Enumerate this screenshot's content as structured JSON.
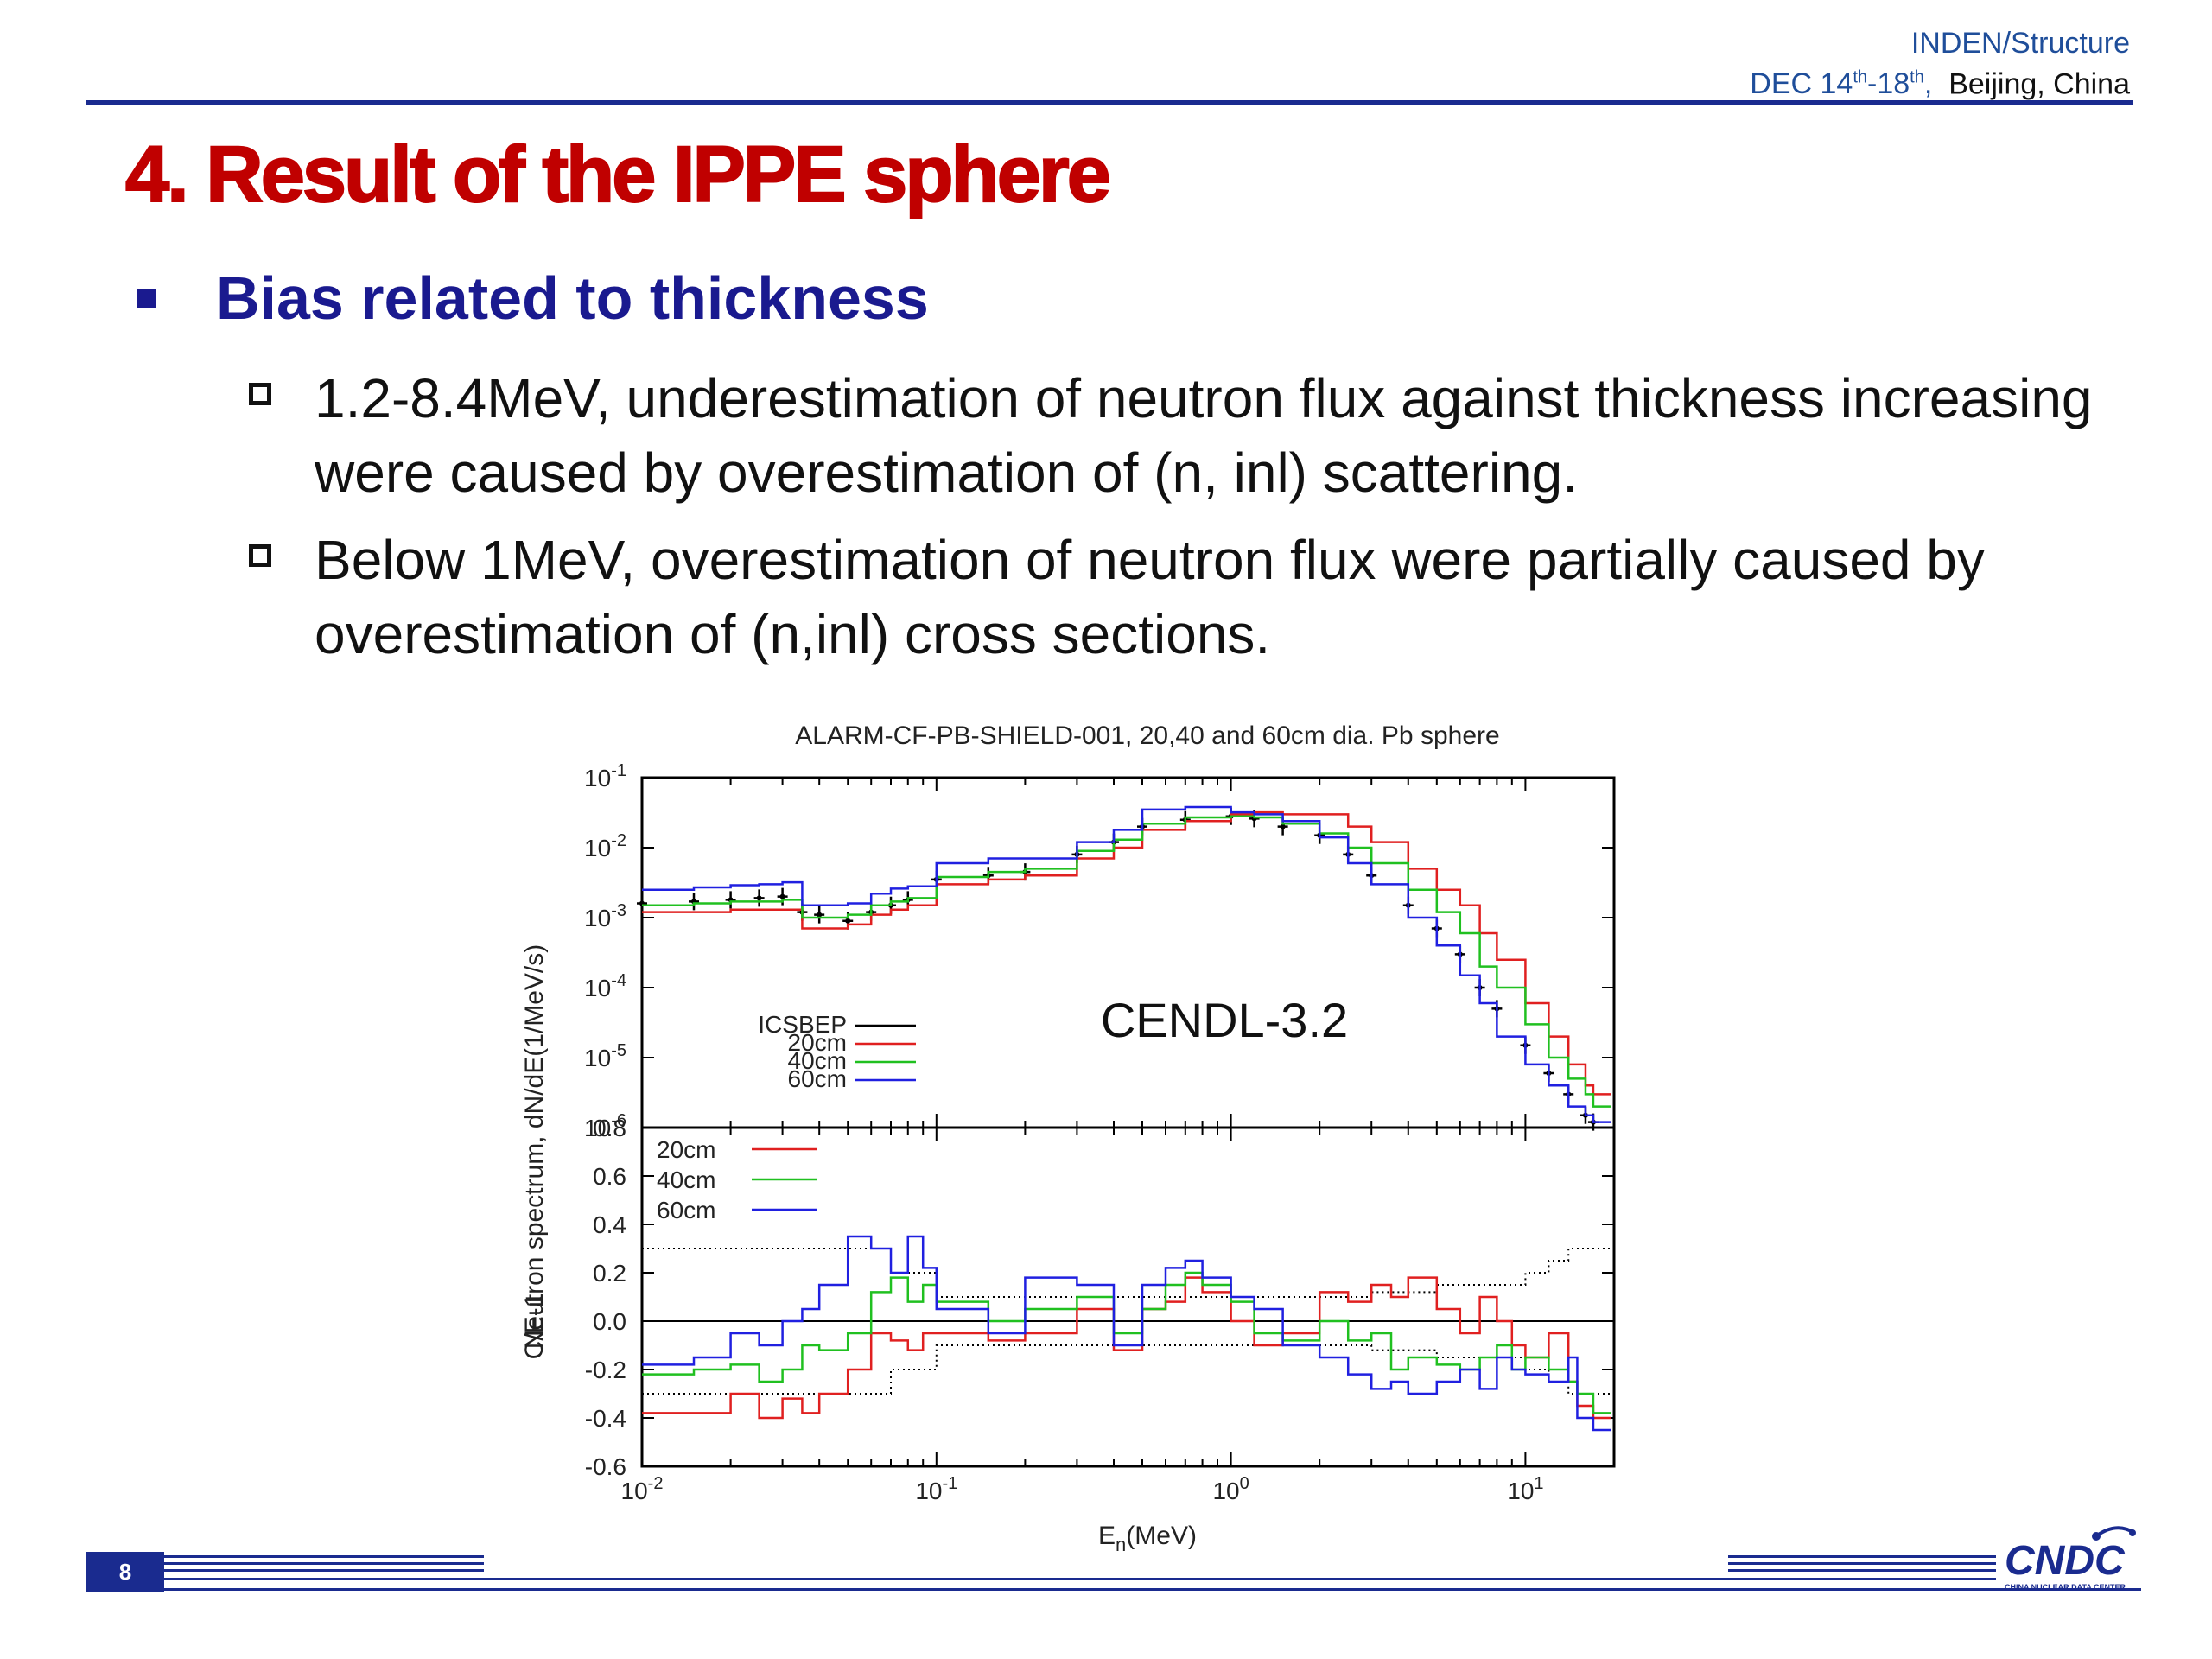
{
  "header": {
    "conference": "INDEN/Structure",
    "date_prefix": "DEC 14",
    "date_sup1": "th",
    "date_mid": "-18",
    "date_sup2": "th",
    "date_suffix": ",",
    "place": "Beijing, China"
  },
  "slide": {
    "title": "4. Result of the IPPE sphere",
    "bullet": "Bias related to thickness",
    "subbullets": [
      "1.2-8.4MeV, underestimation of neutron flux against thickness increasing were caused by overestimation of (n, inl) scattering.",
      "Below 1MeV, overestimation of neutron flux were partially caused by overestimation of (n,inl) cross sections."
    ]
  },
  "footer": {
    "page_number": "8",
    "logo_text": "CNDC",
    "logo_subtext": "CHINA NUCLEAR DATA CENTER"
  },
  "colors": {
    "title_red": "#c00000",
    "bullet_blue": "#1a1a8f",
    "rule_blue": "#1a2b8f",
    "series_icsbep": "#000000",
    "series_20cm": "#e02020",
    "series_40cm": "#20c020",
    "series_60cm": "#2020e0"
  },
  "chart_data": [
    {
      "type": "line",
      "title": "ALARM-CF-PB-SHIELD-001, 20,40 and 60cm dia. Pb sphere",
      "ylabel": "Neutron spectrum, dN/dE(1/MeV/s)",
      "annotation": "CENDL-3.2",
      "x_scale": "log",
      "y_scale": "log",
      "xlim": [
        0.01,
        20
      ],
      "ylim": [
        1e-06,
        0.1
      ],
      "y_ticks": [
        {
          "value": 0.1,
          "base": "10",
          "exp": "-1"
        },
        {
          "value": 0.01,
          "base": "10",
          "exp": "-2"
        },
        {
          "value": 0.001,
          "base": "10",
          "exp": "-3"
        },
        {
          "value": 0.0001,
          "base": "10",
          "exp": "-4"
        },
        {
          "value": 1e-05,
          "base": "10",
          "exp": "-5"
        },
        {
          "value": 1e-06,
          "base": "10",
          "exp": "-6"
        }
      ],
      "legend_position": "bottom-left",
      "series": [
        {
          "name": "ICSBEP",
          "style": "errorbar",
          "x": [
            0.01,
            0.015,
            0.02,
            0.025,
            0.03,
            0.035,
            0.04,
            0.05,
            0.06,
            0.07,
            0.08,
            0.1,
            0.15,
            0.2,
            0.3,
            0.4,
            0.5,
            0.7,
            1.0,
            1.2,
            1.5,
            2.0,
            2.5,
            3.0,
            4.0,
            5.0,
            6.0,
            7.0,
            8.0,
            10.0,
            12.0,
            14.0,
            16.0,
            17.0
          ],
          "y": [
            0.0016,
            0.0017,
            0.0018,
            0.0019,
            0.002,
            0.0012,
            0.0011,
            0.0009,
            0.0012,
            0.0015,
            0.0018,
            0.0035,
            0.004,
            0.0045,
            0.008,
            0.012,
            0.02,
            0.025,
            0.028,
            0.026,
            0.02,
            0.015,
            0.008,
            0.004,
            0.0015,
            0.0007,
            0.0003,
            0.0001,
            5e-05,
            1.5e-05,
            6e-06,
            3e-06,
            1.5e-06,
            1.2e-06
          ]
        },
        {
          "name": "20cm",
          "style": "step",
          "x": [
            0.01,
            0.015,
            0.02,
            0.025,
            0.03,
            0.035,
            0.04,
            0.05,
            0.06,
            0.07,
            0.08,
            0.1,
            0.15,
            0.2,
            0.3,
            0.4,
            0.5,
            0.7,
            1.0,
            1.2,
            1.5,
            2.0,
            2.5,
            3.0,
            4.0,
            5.0,
            6.0,
            7.0,
            8.0,
            10.0,
            12.0,
            14.0,
            16.0,
            17.0
          ],
          "y": [
            0.0012,
            0.0012,
            0.0013,
            0.0013,
            0.0013,
            0.0007,
            0.0007,
            0.0008,
            0.0011,
            0.0013,
            0.0015,
            0.003,
            0.0035,
            0.004,
            0.007,
            0.01,
            0.018,
            0.024,
            0.03,
            0.032,
            0.03,
            0.03,
            0.02,
            0.012,
            0.005,
            0.0025,
            0.0015,
            0.0006,
            0.00025,
            6e-05,
            2e-05,
            8e-06,
            4e-06,
            3e-06
          ]
        },
        {
          "name": "40cm",
          "style": "step",
          "x": [
            0.01,
            0.015,
            0.02,
            0.025,
            0.03,
            0.035,
            0.04,
            0.05,
            0.06,
            0.07,
            0.08,
            0.1,
            0.15,
            0.2,
            0.3,
            0.4,
            0.5,
            0.7,
            1.0,
            1.2,
            1.5,
            2.0,
            2.5,
            3.0,
            4.0,
            5.0,
            6.0,
            7.0,
            8.0,
            10.0,
            12.0,
            14.0,
            16.0,
            17.0
          ],
          "y": [
            0.0015,
            0.0016,
            0.0017,
            0.0017,
            0.0018,
            0.001,
            0.001,
            0.0011,
            0.0015,
            0.0017,
            0.0019,
            0.0038,
            0.0045,
            0.005,
            0.009,
            0.013,
            0.022,
            0.027,
            0.028,
            0.027,
            0.022,
            0.016,
            0.01,
            0.006,
            0.0025,
            0.0012,
            0.0006,
            0.0002,
            0.0001,
            3e-05,
            1e-05,
            5e-06,
            3e-06,
            2e-06
          ]
        },
        {
          "name": "60cm",
          "style": "step",
          "x": [
            0.01,
            0.015,
            0.02,
            0.025,
            0.03,
            0.035,
            0.04,
            0.05,
            0.06,
            0.07,
            0.08,
            0.1,
            0.15,
            0.2,
            0.3,
            0.4,
            0.5,
            0.7,
            1.0,
            1.2,
            1.5,
            2.0,
            2.5,
            3.0,
            4.0,
            5.0,
            6.0,
            7.0,
            8.0,
            10.0,
            12.0,
            14.0,
            16.0,
            17.0
          ],
          "y": [
            0.0025,
            0.0027,
            0.0029,
            0.003,
            0.0032,
            0.0015,
            0.0015,
            0.0016,
            0.0022,
            0.0026,
            0.0028,
            0.006,
            0.007,
            0.007,
            0.012,
            0.018,
            0.035,
            0.038,
            0.032,
            0.03,
            0.024,
            0.014,
            0.006,
            0.003,
            0.001,
            0.0004,
            0.00015,
            6e-05,
            2e-05,
            8e-06,
            4e-06,
            2e-06,
            1.5e-06,
            1.2e-06
          ]
        }
      ]
    },
    {
      "type": "line",
      "xlabel": "E",
      "xlabel_sub": "n",
      "xlabel_suffix": "(MeV)",
      "ylabel": "C/E-1",
      "x_scale": "log",
      "xlim": [
        0.01,
        20
      ],
      "ylim": [
        -0.6,
        0.8
      ],
      "x_ticks": [
        {
          "value": 0.01,
          "base": "10",
          "exp": "-2"
        },
        {
          "value": 0.1,
          "base": "10",
          "exp": "-1"
        },
        {
          "value": 1,
          "base": "10",
          "exp": "0"
        },
        {
          "value": 10,
          "base": "10",
          "exp": "1"
        }
      ],
      "y_ticks": [
        "0.8",
        "0.6",
        "0.4",
        "0.2",
        "0.0",
        "-0.2",
        "-0.4",
        "-0.6"
      ],
      "y_tick_values": [
        0.8,
        0.6,
        0.4,
        0.2,
        0.0,
        -0.2,
        -0.4,
        -0.6
      ],
      "legend_position": "top-left",
      "uncertainty_band": {
        "x": [
          0.01,
          0.03,
          0.05,
          0.07,
          0.1,
          0.2,
          0.3,
          0.5,
          0.7,
          1.0,
          1.5,
          2.0,
          3.0,
          5.0,
          7.0,
          10.0,
          12.0,
          14.0,
          17.0
        ],
        "upper": [
          0.3,
          0.3,
          0.3,
          0.2,
          0.1,
          0.1,
          0.1,
          0.1,
          0.1,
          0.1,
          0.1,
          0.1,
          0.12,
          0.15,
          0.15,
          0.2,
          0.25,
          0.3,
          0.3
        ],
        "lower": [
          -0.3,
          -0.3,
          -0.3,
          -0.2,
          -0.1,
          -0.1,
          -0.1,
          -0.1,
          -0.1,
          -0.1,
          -0.1,
          -0.1,
          -0.12,
          -0.15,
          -0.15,
          -0.2,
          -0.25,
          -0.3,
          -0.3
        ]
      },
      "series": [
        {
          "name": "20cm",
          "x": [
            0.01,
            0.015,
            0.02,
            0.025,
            0.03,
            0.035,
            0.04,
            0.05,
            0.06,
            0.07,
            0.08,
            0.09,
            0.1,
            0.15,
            0.2,
            0.3,
            0.4,
            0.5,
            0.6,
            0.7,
            0.8,
            1.0,
            1.2,
            1.5,
            2.0,
            2.5,
            3.0,
            3.5,
            4.0,
            5.0,
            6.0,
            7.0,
            8.0,
            9.0,
            10.0,
            12.0,
            14.0,
            15.0,
            17.0
          ],
          "y": [
            -0.38,
            -0.38,
            -0.3,
            -0.4,
            -0.32,
            -0.38,
            -0.3,
            -0.2,
            -0.05,
            -0.08,
            -0.12,
            -0.05,
            -0.05,
            -0.08,
            -0.05,
            0.05,
            -0.12,
            0.05,
            0.08,
            0.18,
            0.12,
            0.0,
            -0.1,
            -0.05,
            0.12,
            0.08,
            0.15,
            0.1,
            0.18,
            0.05,
            -0.05,
            0.1,
            0.0,
            -0.1,
            -0.15,
            -0.05,
            -0.25,
            -0.35,
            -0.4
          ]
        },
        {
          "name": "40cm",
          "x": [
            0.01,
            0.015,
            0.02,
            0.025,
            0.03,
            0.035,
            0.04,
            0.05,
            0.06,
            0.07,
            0.08,
            0.09,
            0.1,
            0.15,
            0.2,
            0.3,
            0.4,
            0.5,
            0.6,
            0.7,
            0.8,
            1.0,
            1.2,
            1.5,
            2.0,
            2.5,
            3.0,
            3.5,
            4.0,
            5.0,
            6.0,
            7.0,
            8.0,
            9.0,
            10.0,
            12.0,
            14.0,
            15.0,
            17.0
          ],
          "y": [
            -0.22,
            -0.2,
            -0.18,
            -0.25,
            -0.2,
            -0.1,
            -0.12,
            -0.05,
            0.12,
            0.18,
            0.08,
            0.15,
            0.08,
            0.0,
            0.05,
            0.1,
            -0.05,
            0.05,
            0.15,
            0.2,
            0.15,
            0.08,
            -0.05,
            -0.08,
            0.0,
            -0.08,
            -0.05,
            -0.2,
            -0.15,
            -0.18,
            -0.2,
            -0.15,
            -0.1,
            -0.2,
            -0.15,
            -0.2,
            -0.25,
            -0.3,
            -0.38
          ]
        },
        {
          "name": "60cm",
          "x": [
            0.01,
            0.015,
            0.02,
            0.025,
            0.03,
            0.035,
            0.04,
            0.05,
            0.06,
            0.07,
            0.08,
            0.09,
            0.1,
            0.15,
            0.2,
            0.3,
            0.4,
            0.5,
            0.6,
            0.7,
            0.8,
            1.0,
            1.2,
            1.5,
            2.0,
            2.5,
            3.0,
            3.5,
            4.0,
            5.0,
            6.0,
            7.0,
            8.0,
            9.0,
            10.0,
            12.0,
            14.0,
            15.0,
            17.0
          ],
          "y": [
            -0.18,
            -0.15,
            -0.05,
            -0.1,
            0.0,
            0.05,
            0.15,
            0.35,
            0.3,
            0.2,
            0.35,
            0.22,
            0.05,
            -0.05,
            0.18,
            0.15,
            -0.1,
            0.15,
            0.22,
            0.25,
            0.18,
            0.1,
            0.05,
            -0.1,
            -0.15,
            -0.22,
            -0.28,
            -0.25,
            -0.3,
            -0.25,
            -0.2,
            -0.28,
            -0.15,
            -0.2,
            -0.22,
            -0.25,
            -0.15,
            -0.4,
            -0.45
          ]
        }
      ]
    }
  ]
}
